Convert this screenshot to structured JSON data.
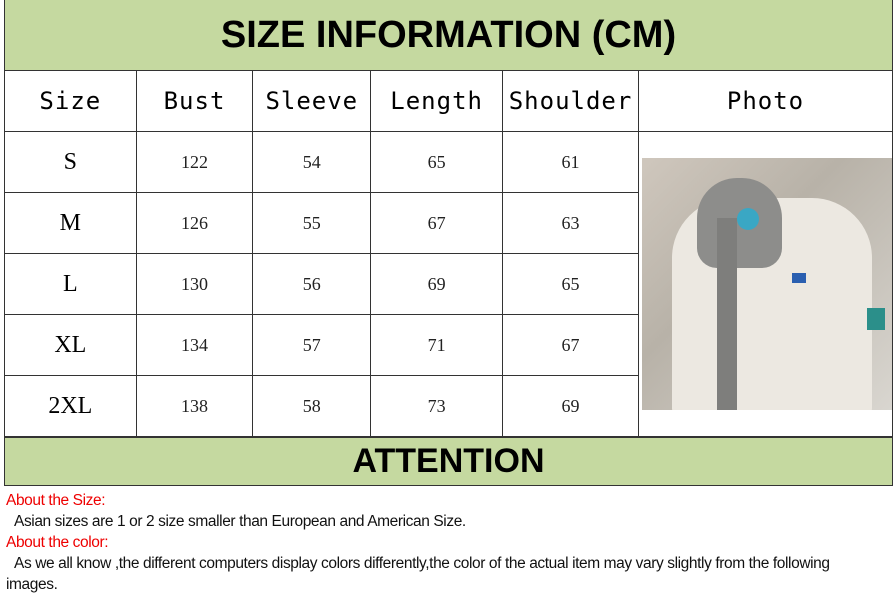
{
  "title": "SIZE INFORMATION (CM)",
  "headers": [
    "Size",
    "Bust",
    "Sleeve",
    "Length",
    "Shoulder",
    "Photo"
  ],
  "rows": [
    {
      "size": "S",
      "bust": "122",
      "sleeve": "54",
      "length": "65",
      "shoulder": "61"
    },
    {
      "size": "M",
      "bust": "126",
      "sleeve": "55",
      "length": "67",
      "shoulder": "63"
    },
    {
      "size": "L",
      "bust": "130",
      "sleeve": "56",
      "length": "69",
      "shoulder": "65"
    },
    {
      "size": "XL",
      "bust": "134",
      "sleeve": "57",
      "length": "71",
      "shoulder": "67"
    },
    {
      "size": "2XL",
      "bust": "138",
      "sleeve": "58",
      "length": "73",
      "shoulder": "69"
    }
  ],
  "attention": "ATTENTION",
  "notes": {
    "size_heading": "About the Size:",
    "size_text": "Asian sizes are 1 or 2 size smaller than European and American Size.",
    "color_heading": "About the color:",
    "color_text": "As we all know ,the different computers display colors differently,the color of the actual item may vary slightly from the following images."
  },
  "colors": {
    "band": "#c5d9a0",
    "heading": "#ee0000"
  }
}
